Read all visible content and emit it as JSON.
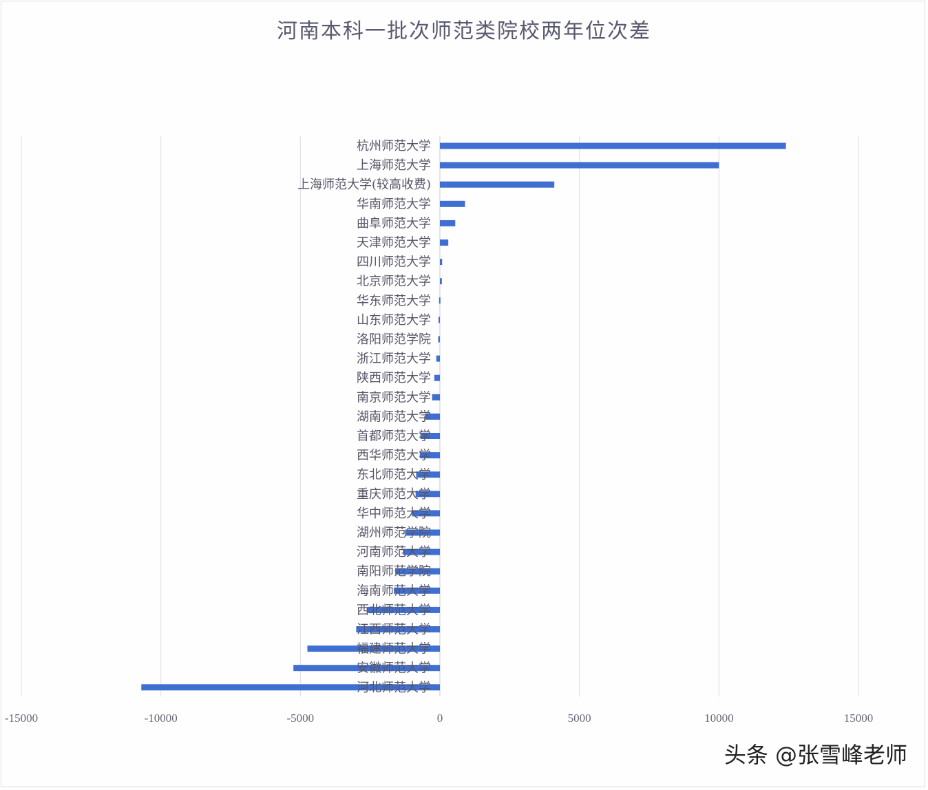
{
  "watermark": "头条 @张雪峰老师",
  "chart_data": {
    "type": "bar",
    "orientation": "horizontal",
    "title": "河南本科一批次师范类院校两年位次差",
    "xlabel": "",
    "ylabel": "",
    "xlim": [
      -15000,
      15000
    ],
    "xticks": [
      -15000,
      -10000,
      -5000,
      0,
      5000,
      10000,
      15000
    ],
    "xtick_labels": [
      "-15000",
      "-10000",
      "-5000",
      "0",
      "5000",
      "10000",
      "15000"
    ],
    "grid": true,
    "series_color": "#3f6fd0",
    "categories": [
      "杭州师范大学",
      "上海师范大学",
      "上海师范大学(较高收费)",
      "华南师范大学",
      "曲阜师范大学",
      "天津师范大学",
      "四川师范大学",
      "北京师范大学",
      "华东师范大学",
      "山东师范大学",
      "洛阳师范学院",
      "浙江师范大学",
      "陕西师范大学",
      "南京师范大学",
      "湖南师范大学",
      "首都师范大学",
      "西华师范大学",
      "东北师范大学",
      "重庆师范大学",
      "华中师范大学",
      "湖州师范学院",
      "河南师范大学",
      "南阳师范学院",
      "海南师范大学",
      "西北师范大学",
      "江西师范大学",
      "福建师范大学",
      "安徽师范大学",
      "河北师范大学"
    ],
    "values": [
      12400,
      10000,
      4100,
      900,
      550,
      300,
      80,
      70,
      -30,
      -50,
      -60,
      -130,
      -200,
      -280,
      -520,
      -700,
      -720,
      -850,
      -870,
      -1000,
      -1250,
      -1320,
      -1600,
      -1650,
      -2600,
      -3000,
      -4750,
      -5250,
      -10700
    ]
  }
}
